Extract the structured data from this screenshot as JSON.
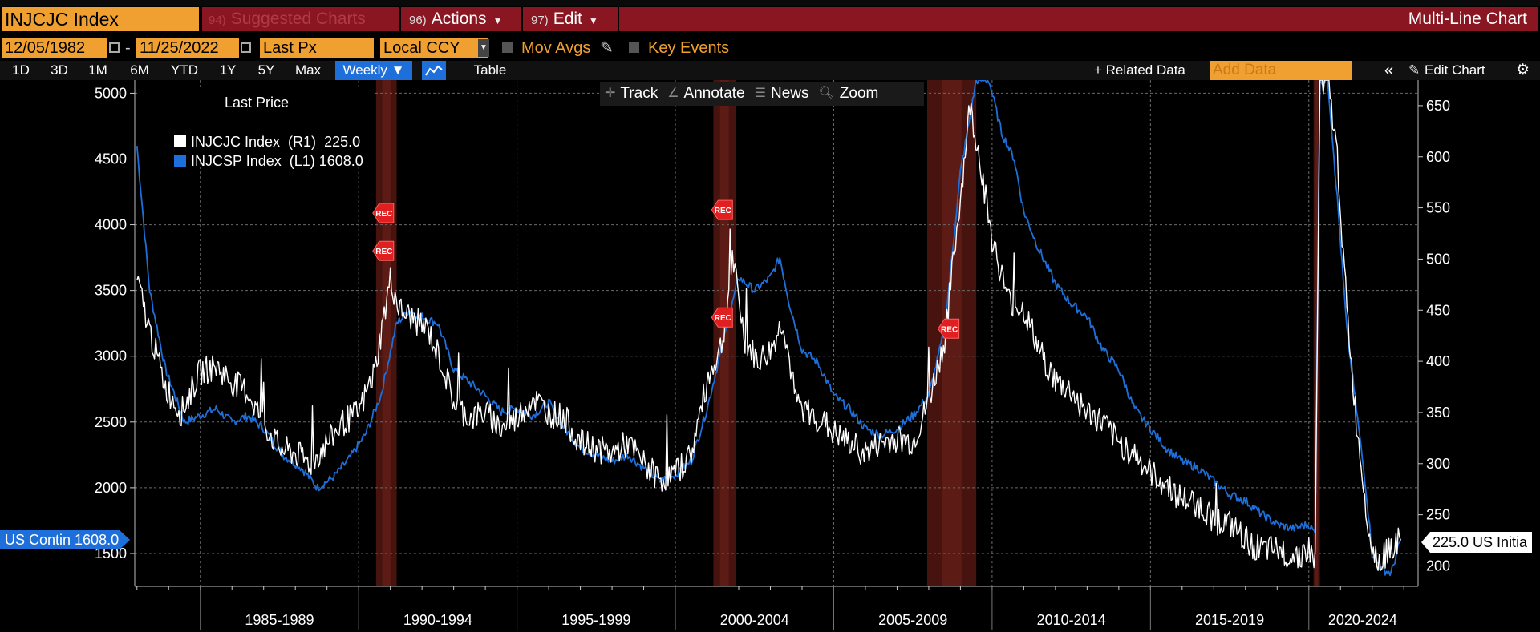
{
  "header": {
    "ticker": "INJCJC Index",
    "menu": [
      {
        "num": "94)",
        "label": "Suggested Charts",
        "dim": true
      },
      {
        "num": "96)",
        "label": "Actions",
        "dim": false
      },
      {
        "num": "97)",
        "label": "Edit",
        "dim": false
      }
    ],
    "chart_type": "Multi-Line Chart"
  },
  "params": {
    "start_date": "12/05/1982",
    "dash": "-",
    "end_date": "11/25/2022",
    "field": "Last Px",
    "currency": "Local CCY",
    "mov_avgs": "Mov Avgs",
    "key_events": "Key Events"
  },
  "toolbar": {
    "ranges": [
      "1D",
      "3D",
      "1M",
      "6M",
      "YTD",
      "1Y",
      "5Y",
      "Max"
    ],
    "periodicity": "Weekly ▼",
    "table": "Table",
    "related_data": "+ Related Data",
    "add_data_placeholder": "Add Data",
    "collapse": "«",
    "edit_chart": "Edit Chart"
  },
  "tools": {
    "track": "Track",
    "annotate": "Annotate",
    "news": "News",
    "zoom": "Zoom"
  },
  "legend": {
    "title": "Last Price",
    "rows": [
      {
        "label": "INJCJC Index  (R1)",
        "value": "225.0",
        "color": "#ffffff"
      },
      {
        "label": "INJCSP Index  (L1)",
        "value": "1608.0",
        "color": "#1e6fd9"
      }
    ]
  },
  "tags": {
    "left": "US Contin 1608.0",
    "right": "225.0 US Initia"
  },
  "event_label": "REC",
  "colors": {
    "accent_orange": "#f0a030",
    "menu_red": "#8a1622",
    "blue_series": "#1e6fd9",
    "white_series": "#ffffff",
    "recession_band": "#5a1a16"
  },
  "chart_data": {
    "type": "line",
    "title": "",
    "x_labels": [
      "1985-1989",
      "1990-1994",
      "1995-1999",
      "2000-2004",
      "2005-2009",
      "2010-2014",
      "2015-2019",
      "2020-2024"
    ],
    "left_axis": {
      "ticks": [
        1500,
        2000,
        2500,
        3000,
        3500,
        4000,
        4500,
        5000
      ],
      "range": [
        1250,
        5100
      ]
    },
    "right_axis": {
      "ticks": [
        200,
        250,
        300,
        350,
        400,
        450,
        500,
        550,
        600,
        650
      ],
      "range": [
        180,
        675
      ]
    },
    "recessions": [
      {
        "start": 1990.55,
        "end": 1991.2
      },
      {
        "start": 2001.2,
        "end": 2001.9
      },
      {
        "start": 2007.95,
        "end": 2009.5
      },
      {
        "start": 2020.15,
        "end": 2020.35
      }
    ],
    "series": [
      {
        "name": "INJCSP Index (L1)",
        "axis": "left",
        "color": "#1e6fd9",
        "points": [
          [
            1983.0,
            4600
          ],
          [
            1983.4,
            3500
          ],
          [
            1983.9,
            2900
          ],
          [
            1984.5,
            2500
          ],
          [
            1985.0,
            2550
          ],
          [
            1985.5,
            2600
          ],
          [
            1986.0,
            2500
          ],
          [
            1986.5,
            2550
          ],
          [
            1987.0,
            2450
          ],
          [
            1987.6,
            2250
          ],
          [
            1988.2,
            2150
          ],
          [
            1988.7,
            2000
          ],
          [
            1989.2,
            2080
          ],
          [
            1989.7,
            2220
          ],
          [
            1990.2,
            2400
          ],
          [
            1990.7,
            2700
          ],
          [
            1991.2,
            3250
          ],
          [
            1991.6,
            3350
          ],
          [
            1992.0,
            3300
          ],
          [
            1992.5,
            3250
          ],
          [
            1993.0,
            2900
          ],
          [
            1993.5,
            2800
          ],
          [
            1994.0,
            2700
          ],
          [
            1994.5,
            2580
          ],
          [
            1995.0,
            2600
          ],
          [
            1995.5,
            2550
          ],
          [
            1996.0,
            2650
          ],
          [
            1996.5,
            2450
          ],
          [
            1997.0,
            2300
          ],
          [
            1997.5,
            2250
          ],
          [
            1998.0,
            2200
          ],
          [
            1998.5,
            2250
          ],
          [
            1999.0,
            2150
          ],
          [
            1999.5,
            2050
          ],
          [
            2000.0,
            2100
          ],
          [
            2000.5,
            2200
          ],
          [
            2001.0,
            2600
          ],
          [
            2001.5,
            3100
          ],
          [
            2002.0,
            3600
          ],
          [
            2002.5,
            3500
          ],
          [
            2003.0,
            3600
          ],
          [
            2003.3,
            3750
          ],
          [
            2003.6,
            3400
          ],
          [
            2004.0,
            3050
          ],
          [
            2004.5,
            2950
          ],
          [
            2005.0,
            2700
          ],
          [
            2005.5,
            2600
          ],
          [
            2006.0,
            2450
          ],
          [
            2006.5,
            2400
          ],
          [
            2007.0,
            2450
          ],
          [
            2007.5,
            2550
          ],
          [
            2008.0,
            2700
          ],
          [
            2008.5,
            3200
          ],
          [
            2009.0,
            4400
          ],
          [
            2009.5,
            5100
          ],
          [
            2009.9,
            5100
          ],
          [
            2010.3,
            4700
          ],
          [
            2010.7,
            4500
          ],
          [
            2011.0,
            4100
          ],
          [
            2011.5,
            3800
          ],
          [
            2012.0,
            3550
          ],
          [
            2012.5,
            3400
          ],
          [
            2013.0,
            3300
          ],
          [
            2013.5,
            3050
          ],
          [
            2014.0,
            2900
          ],
          [
            2014.5,
            2600
          ],
          [
            2015.0,
            2450
          ],
          [
            2015.5,
            2300
          ],
          [
            2016.0,
            2200
          ],
          [
            2016.5,
            2150
          ],
          [
            2017.0,
            2050
          ],
          [
            2017.5,
            1950
          ],
          [
            2018.0,
            1900
          ],
          [
            2018.5,
            1800
          ],
          [
            2019.0,
            1720
          ],
          [
            2019.5,
            1690
          ],
          [
            2020.0,
            1720
          ],
          [
            2020.2,
            1650
          ],
          [
            2020.35,
            5100
          ],
          [
            2020.6,
            5100
          ],
          [
            2020.9,
            4200
          ],
          [
            2021.2,
            3200
          ],
          [
            2021.5,
            2600
          ],
          [
            2021.8,
            2000
          ],
          [
            2022.0,
            1500
          ],
          [
            2022.3,
            1380
          ],
          [
            2022.6,
            1350
          ],
          [
            2022.9,
            1608
          ]
        ]
      },
      {
        "name": "INJCJC Index (R1)",
        "axis": "right",
        "color": "#ffffff",
        "points": [
          [
            1983.0,
            480
          ],
          [
            1983.4,
            430
          ],
          [
            1983.9,
            375
          ],
          [
            1984.4,
            350
          ],
          [
            1985.0,
            390
          ],
          [
            1985.5,
            395
          ],
          [
            1986.0,
            380
          ],
          [
            1986.5,
            370
          ],
          [
            1987.0,
            340
          ],
          [
            1987.5,
            315
          ],
          [
            1988.0,
            310
          ],
          [
            1988.5,
            300
          ],
          [
            1989.0,
            320
          ],
          [
            1989.5,
            340
          ],
          [
            1990.0,
            350
          ],
          [
            1990.5,
            390
          ],
          [
            1991.0,
            480
          ],
          [
            1991.3,
            450
          ],
          [
            1991.8,
            440
          ],
          [
            1992.2,
            430
          ],
          [
            1992.6,
            400
          ],
          [
            1993.0,
            360
          ],
          [
            1993.5,
            345
          ],
          [
            1994.0,
            350
          ],
          [
            1994.5,
            335
          ],
          [
            1995.0,
            345
          ],
          [
            1995.5,
            365
          ],
          [
            1996.0,
            350
          ],
          [
            1996.5,
            345
          ],
          [
            1997.0,
            320
          ],
          [
            1997.5,
            315
          ],
          [
            1998.0,
            310
          ],
          [
            1998.5,
            320
          ],
          [
            1999.0,
            300
          ],
          [
            1999.5,
            285
          ],
          [
            2000.0,
            290
          ],
          [
            2000.5,
            310
          ],
          [
            2001.0,
            380
          ],
          [
            2001.5,
            420
          ],
          [
            2001.8,
            500
          ],
          [
            2002.2,
            420
          ],
          [
            2002.6,
            400
          ],
          [
            2003.0,
            410
          ],
          [
            2003.4,
            440
          ],
          [
            2003.8,
            360
          ],
          [
            2004.2,
            350
          ],
          [
            2004.7,
            340
          ],
          [
            2005.0,
            330
          ],
          [
            2005.5,
            320
          ],
          [
            2006.0,
            310
          ],
          [
            2006.5,
            320
          ],
          [
            2007.0,
            325
          ],
          [
            2007.5,
            320
          ],
          [
            2008.0,
            360
          ],
          [
            2008.5,
            420
          ],
          [
            2009.0,
            560
          ],
          [
            2009.3,
            650
          ],
          [
            2009.6,
            600
          ],
          [
            2010.0,
            520
          ],
          [
            2010.5,
            460
          ],
          [
            2011.0,
            450
          ],
          [
            2011.5,
            410
          ],
          [
            2012.0,
            380
          ],
          [
            2012.5,
            370
          ],
          [
            2013.0,
            350
          ],
          [
            2013.5,
            340
          ],
          [
            2014.0,
            320
          ],
          [
            2014.5,
            310
          ],
          [
            2015.0,
            290
          ],
          [
            2015.5,
            280
          ],
          [
            2016.0,
            265
          ],
          [
            2016.5,
            260
          ],
          [
            2017.0,
            245
          ],
          [
            2017.5,
            240
          ],
          [
            2018.0,
            225
          ],
          [
            2018.5,
            215
          ],
          [
            2019.0,
            215
          ],
          [
            2019.5,
            210
          ],
          [
            2020.0,
            215
          ],
          [
            2020.2,
            205
          ],
          [
            2020.35,
            675
          ],
          [
            2020.6,
            675
          ],
          [
            2020.9,
            600
          ],
          [
            2021.2,
            450
          ],
          [
            2021.5,
            340
          ],
          [
            2021.8,
            260
          ],
          [
            2022.0,
            215
          ],
          [
            2022.3,
            205
          ],
          [
            2022.6,
            220
          ],
          [
            2022.9,
            225
          ]
        ]
      }
    ],
    "event_markers": [
      {
        "x": 1990.75,
        "axis": "right",
        "y": 545
      },
      {
        "x": 1990.75,
        "axis": "right",
        "y": 508
      },
      {
        "x": 2001.45,
        "axis": "right",
        "y": 548
      },
      {
        "x": 2001.45,
        "axis": "right",
        "y": 443
      },
      {
        "x": 2008.6,
        "axis": "right",
        "y": 432
      }
    ],
    "grid": true
  }
}
